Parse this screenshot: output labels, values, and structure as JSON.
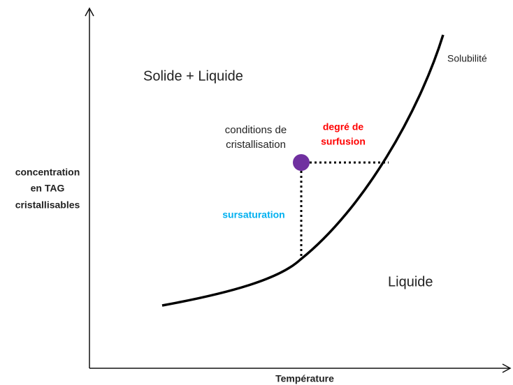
{
  "diagram": {
    "x_axis_label": "Température",
    "y_axis_label": [
      "concentration",
      "en TAG",
      "cristallisables"
    ],
    "curve_label": "Solubilité",
    "region_above": "Solide + Liquide",
    "region_below": "Liquide",
    "point_label": [
      "conditions de",
      "cristallisation"
    ],
    "horizontal_label": [
      "degré de",
      "surfusion"
    ],
    "vertical_label": "sursaturation"
  }
}
